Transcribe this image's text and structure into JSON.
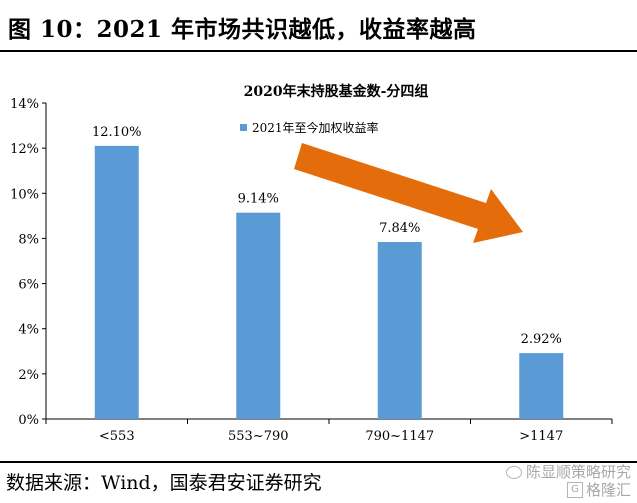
{
  "header": {
    "title": "图 10：2021 年市场共识越低，收益率越高"
  },
  "footer": {
    "source": "数据来源：Wind，国泰君安证券研究",
    "watermark_line1": "陈显顺策略研究",
    "watermark_line2": "格隆汇"
  },
  "colors": {
    "bar": "#5b9bd5",
    "arrow": "#e46c0a",
    "axis": "#000000"
  },
  "chart_data": {
    "type": "bar",
    "title": "2020年末持股基金数-分四组",
    "categories": [
      "<553",
      "553~790",
      "790~1147",
      ">1147"
    ],
    "series": [
      {
        "name": "2021年至今加权收益率",
        "values": [
          12.1,
          9.14,
          7.84,
          2.92
        ],
        "labels": [
          "12.10%",
          "9.14%",
          "7.84%",
          "2.92%"
        ]
      }
    ],
    "ylim": [
      0,
      14
    ],
    "yticks": [
      "0%",
      "2%",
      "4%",
      "6%",
      "8%",
      "10%",
      "12%",
      "14%"
    ],
    "ytick_values": [
      0,
      2,
      4,
      6,
      8,
      10,
      12,
      14
    ],
    "xlabel": "",
    "ylabel": "",
    "grid": false,
    "legend_position": "top-center",
    "annotation": "downward trend arrow"
  }
}
